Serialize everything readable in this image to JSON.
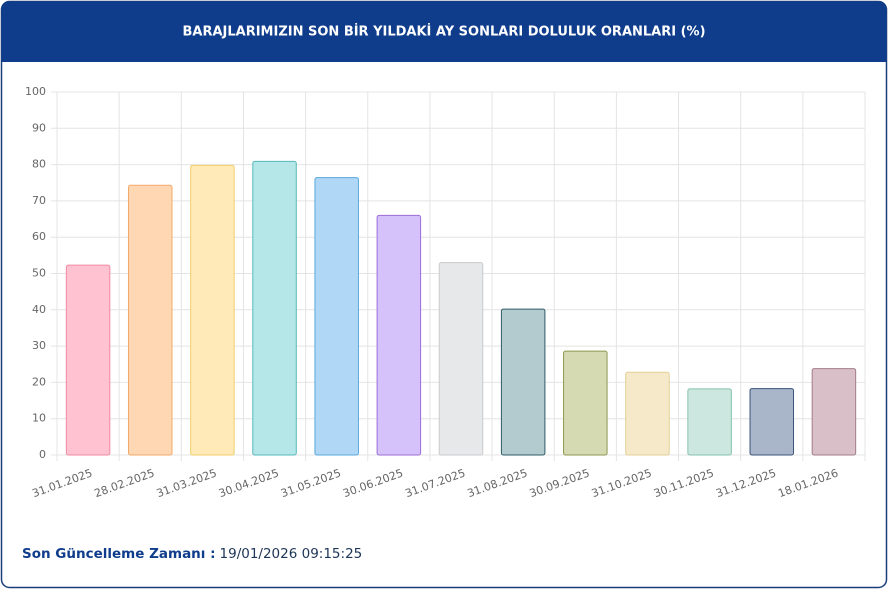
{
  "chart_data": {
    "type": "bar",
    "title": "BARAJLARIMIZIN SON BİR YILDAKİ AY SONLARI DOLULUK ORANLARI (%)",
    "categories": [
      "31.01.2025",
      "28.02.2025",
      "31.03.2025",
      "30.04.2025",
      "31.05.2025",
      "30.06.2025",
      "31.07.2025",
      "31.08.2025",
      "30.09.2025",
      "31.10.2025",
      "30.11.2025",
      "31.12.2025",
      "18.01.2026"
    ],
    "values": [
      52.3,
      74.3,
      79.8,
      80.9,
      76.4,
      66.0,
      53.0,
      40.2,
      28.6,
      22.8,
      18.2,
      18.3,
      23.8
    ],
    "colors": [
      "#ffc2d1",
      "#ffd8b3",
      "#ffeab8",
      "#b6e7e8",
      "#b0d8f6",
      "#d6c2fb",
      "#e7e8ea",
      "#b3cbcf",
      "#d6dab2",
      "#f6e9c9",
      "#cbe7df",
      "#a9b6ca",
      "#d9c0c8"
    ],
    "border_colors": [
      "#f08aa6",
      "#f2a96a",
      "#f0cf6a",
      "#55b8ba",
      "#5aa7dc",
      "#9b6fd6",
      "#c9cacd",
      "#2f5d66",
      "#8f9650",
      "#e3cf96",
      "#86c2ae",
      "#3b5478",
      "#a37c89"
    ],
    "ylim": [
      0,
      100
    ],
    "yticks": [
      0,
      10,
      20,
      30,
      40,
      50,
      60,
      70,
      80,
      90,
      100
    ],
    "grid": true,
    "footer_label": "Son Güncelleme Zamanı :",
    "footer_value": "19/01/2026 09:15:25"
  }
}
